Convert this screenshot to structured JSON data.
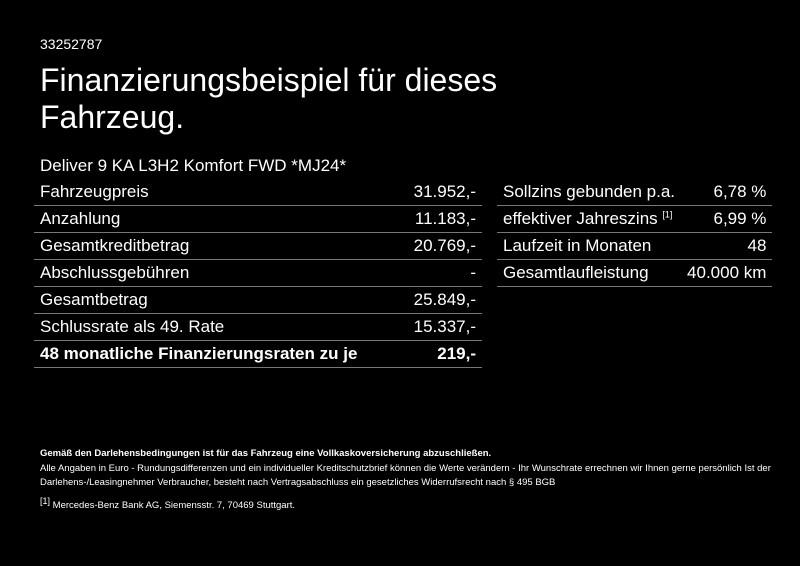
{
  "header": {
    "id": "33252787",
    "title": "Finanzierungsbeispiel für dieses Fahrzeug.",
    "model": "Deliver 9 KA L3H2 Komfort FWD *MJ24*"
  },
  "left_table": {
    "rows": [
      [
        "Fahrzeugpreis",
        "31.952,-"
      ],
      [
        "Anzahlung",
        "11.183,-"
      ],
      [
        "Gesamtkreditbetrag",
        "20.769,-"
      ],
      [
        "Abschlussgebühren",
        "-"
      ],
      [
        "Gesamtbetrag",
        "25.849,-"
      ],
      [
        "Schlussrate als 49. Rate",
        "15.337,-"
      ],
      [
        "48 monatliche Finanzierungsraten zu je",
        "219,-"
      ]
    ]
  },
  "right_table": {
    "rows": [
      [
        "Sollzins gebunden p.a.",
        "6,78 %"
      ],
      [
        "effektiver Jahreszins",
        "6,99 %"
      ],
      [
        "Laufzeit in Monaten",
        "48"
      ],
      [
        "Gesamtlaufleistung",
        "40.000 km"
      ]
    ],
    "marker": "[1]"
  },
  "footer": {
    "insurance": "Gemäß den Darlehensbedingungen ist für das Fahrzeug eine Vollkaskoversicherung abzuschließen.",
    "disclaimer": "Alle Angaben in Euro - Rundungsdifferenzen und ein individueller Kreditschutzbrief können die Werte verändern - Ihr Wunschrate errechnen wir Ihnen gerne persönlich Ist der Darlehens-/Leasingnehmer Verbraucher, besteht nach Vertragsabschluss ein gesetzliches Widerrufsrecht nach § 495 BGB",
    "footnote_marker": "[1]",
    "footnote": "Mercedes-Benz Bank AG, Siemensstr. 7, 70469 Stuttgart."
  }
}
